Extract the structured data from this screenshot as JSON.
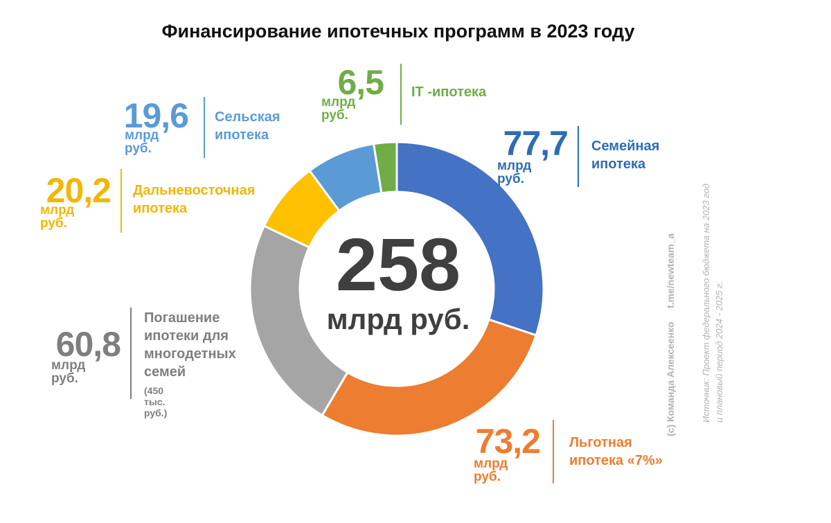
{
  "title": "Финансирование ипотечных программ в 2023 году",
  "chart_data": {
    "type": "pie",
    "title": "Финансирование ипотечных программ в 2023 году",
    "total": {
      "value": "258",
      "unit": "млрд руб."
    },
    "slices": [
      {
        "value": 77.7,
        "display": "77,7",
        "unit": "млрд руб.",
        "label": "Семейная ипотека",
        "color": "#4472C4"
      },
      {
        "value": 73.2,
        "display": "73,2",
        "unit": "млрд руб.",
        "label": "Льготная ипотека «7%»",
        "color": "#ED7D31"
      },
      {
        "value": 60.8,
        "display": "60,8",
        "unit": "млрд руб.",
        "label": "Погашение ипотеки для многодетных семей",
        "note": "(450 тыс. руб.)",
        "color": "#A5A5A5"
      },
      {
        "value": 20.2,
        "display": "20,2",
        "unit": "млрд руб.",
        "label": "Дальневосточная ипотека",
        "color": "#FFC000"
      },
      {
        "value": 19.6,
        "display": "19,6",
        "unit": "млрд руб.",
        "label": "Сельская ипотека",
        "color": "#5B9BD5"
      },
      {
        "value": 6.5,
        "display": "6,5",
        "unit": "млрд руб.",
        "label": "IT -ипотека",
        "color": "#70AD47"
      }
    ]
  },
  "credit": {
    "author": "(с) Команда Алексеенко",
    "channel": "t.me/newteam_a"
  },
  "source": {
    "line1": "Источник: Проект федерального бюджета на 2023 год",
    "line2": "и плановый период 2024 - 2025 г."
  },
  "label_colors": {
    "family": "#2E6DB4",
    "preferential": "#ED7D31",
    "large_families": "#7F7F7F",
    "far_east": "#F2B705",
    "rural": "#5B9BD5",
    "it": "#70AD47"
  }
}
